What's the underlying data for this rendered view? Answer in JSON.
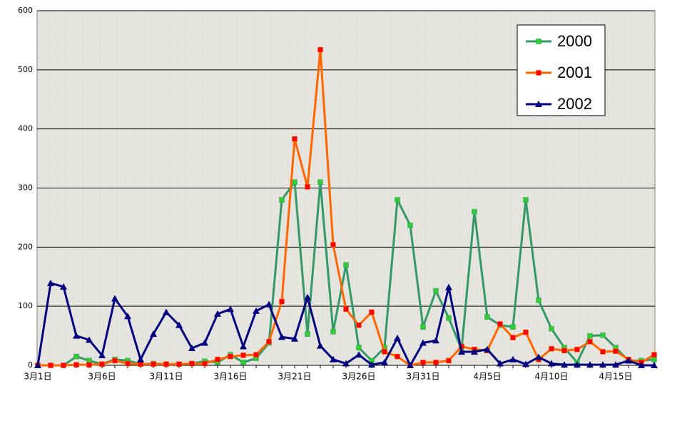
{
  "chart_data": {
    "type": "line",
    "categories": [
      "3月1日",
      null,
      null,
      null,
      null,
      "3月6日",
      null,
      null,
      null,
      null,
      "3月11日",
      null,
      null,
      null,
      null,
      "3月16日",
      null,
      null,
      null,
      null,
      "3月21日",
      null,
      null,
      null,
      null,
      "3月26日",
      null,
      null,
      null,
      null,
      "3月31日",
      null,
      null,
      null,
      null,
      "4月5日",
      null,
      null,
      null,
      null,
      "4月10日",
      null,
      null,
      null,
      null,
      "4月15日",
      null,
      null,
      null
    ],
    "series": [
      {
        "name": "2000",
        "color": "#339966",
        "marker": "square",
        "marker_color": "#33cc33",
        "values": [
          0,
          0,
          0,
          15,
          8,
          2,
          10,
          8,
          2,
          3,
          2,
          2,
          3,
          7,
          5,
          18,
          5,
          12,
          38,
          280,
          310,
          53,
          310,
          57,
          170,
          30,
          8,
          30,
          280,
          237,
          65,
          126,
          80,
          27,
          260,
          82,
          68,
          65,
          280,
          110,
          62,
          30,
          5,
          50,
          51,
          30,
          8,
          8,
          10
        ]
      },
      {
        "name": "2001",
        "color": "#ff6600",
        "marker": "square",
        "marker_color": "#ff0000",
        "values": [
          0,
          0,
          0,
          1,
          1,
          2,
          8,
          3,
          2,
          2,
          2,
          2,
          3,
          3,
          10,
          15,
          17,
          18,
          40,
          108,
          383,
          302,
          534,
          204,
          95,
          68,
          90,
          23,
          15,
          0,
          5,
          5,
          8,
          32,
          27,
          25,
          70,
          47,
          56,
          10,
          28,
          25,
          27,
          40,
          23,
          24,
          10,
          5,
          18
        ]
      },
      {
        "name": "2002",
        "color": "#000080",
        "marker": "triangle",
        "marker_color": "#000080",
        "values": [
          0,
          139,
          133,
          50,
          43,
          17,
          113,
          83,
          10,
          53,
          90,
          68,
          29,
          38,
          87,
          95,
          32,
          92,
          103,
          48,
          45,
          115,
          33,
          10,
          3,
          18,
          1,
          5,
          46,
          0,
          38,
          42,
          132,
          23,
          23,
          27,
          3,
          10,
          2,
          14,
          3,
          1,
          1,
          1,
          1,
          1,
          8,
          0,
          0
        ]
      }
    ],
    "ylim": [
      0,
      600
    ],
    "yticks": [
      0,
      100,
      200,
      300,
      400,
      500,
      600
    ],
    "grid": true,
    "legend": "top-right"
  }
}
